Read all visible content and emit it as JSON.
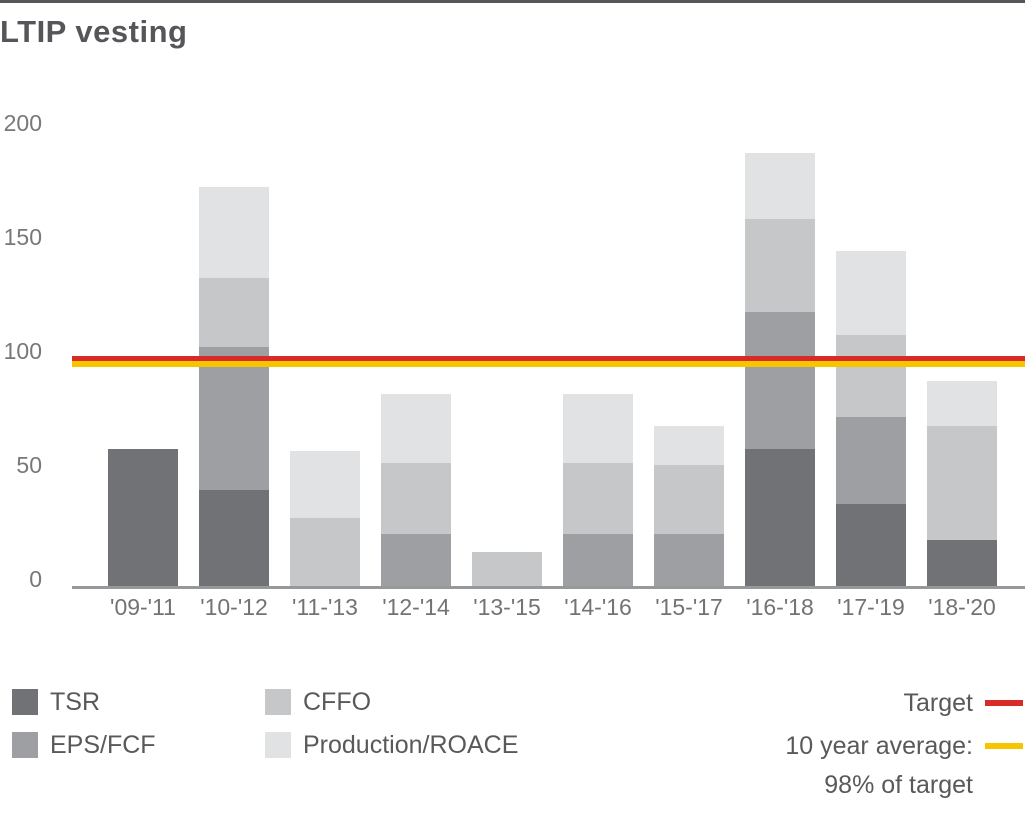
{
  "chart": {
    "title": "LTIP vesting"
  },
  "chart_data": {
    "type": "bar",
    "subtype": "stacked",
    "title": "LTIP vesting",
    "categories": [
      "'09-'11",
      "'10-'12",
      "'11-'13",
      "'12-'14",
      "'13-'15",
      "'14-'16",
      "'15-'17",
      "'16-'18",
      "'17-'19",
      "'18-'20"
    ],
    "series": [
      {
        "name": "TSR",
        "color": "#707275",
        "values": [
          60,
          42,
          0,
          0,
          0,
          0,
          0,
          60,
          36,
          20
        ]
      },
      {
        "name": "EPS/FCF",
        "color": "#9d9fa2",
        "values": [
          0,
          63,
          0,
          23,
          0,
          23,
          23,
          60,
          38,
          0
        ]
      },
      {
        "name": "CFFO",
        "color": "#c5c7c9",
        "values": [
          0,
          30,
          30,
          31,
          15,
          31,
          30,
          41,
          36,
          50
        ]
      },
      {
        "name": "Production/ROACE",
        "color": "#e1e2e3",
        "values": [
          0,
          40,
          29,
          30,
          0,
          30,
          17,
          29,
          37,
          20
        ]
      }
    ],
    "bar_totals": [
      60,
      175,
      59,
      84,
      15,
      84,
      70,
      190,
      147,
      90
    ],
    "xlabel": "",
    "ylabel": "",
    "yticks": [
      0,
      50,
      100,
      150,
      200
    ],
    "ylim": [
      0,
      205
    ],
    "grid": false,
    "legend_position": "bottom",
    "reference_lines": [
      {
        "name": "Target",
        "value": 100,
        "color": "#d62b27"
      },
      {
        "name": "10 year average",
        "value": 98,
        "color": "#f6c500"
      }
    ]
  },
  "legend": {
    "items": [
      {
        "label": "TSR",
        "color": "#707275"
      },
      {
        "label": "EPS/FCF",
        "color": "#9d9fa2"
      },
      {
        "label": "CFFO",
        "color": "#c5c7c9"
      },
      {
        "label": "Production/ROACE",
        "color": "#e1e2e3"
      }
    ],
    "target_label": "Target",
    "target_color": "#d62b27",
    "average_label_line1": "10 year average:",
    "average_label_line2": "98% of target",
    "average_color": "#f6c500"
  }
}
